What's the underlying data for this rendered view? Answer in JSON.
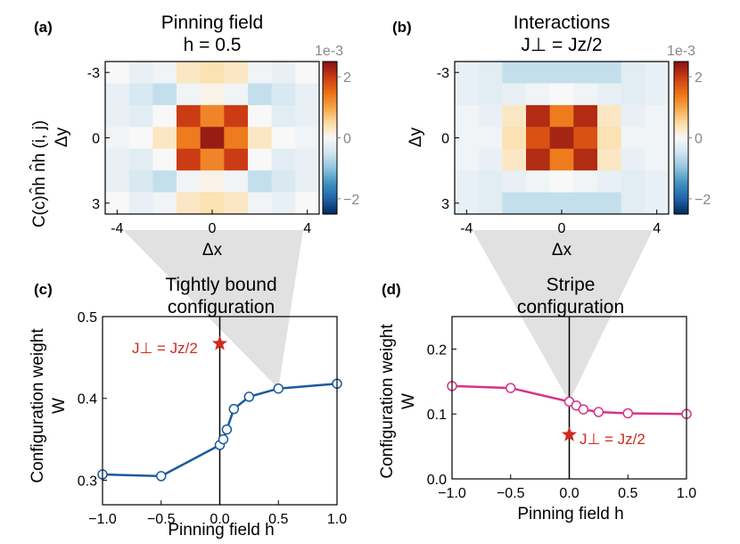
{
  "colors": {
    "blue_line": "#1a5a9c",
    "pink_line": "#d6338a",
    "star": "#d02a1e",
    "cone": "#c8c8c8"
  },
  "chart_data": [
    {
      "id": "a",
      "type": "heatmap",
      "panel_label": "(a)",
      "title_line1": "Pinning field",
      "title_line2": "h = 0.5",
      "xlabel": "Δx",
      "ylabel": "Δy",
      "side_label": "C(c)n̂h n̂h (i, j)",
      "x_ticks": [
        "-4",
        "0",
        "4"
      ],
      "y_ticks": [
        "-3",
        "0",
        "3"
      ],
      "colorbar_ticks": [
        "2",
        "0",
        "−2"
      ],
      "colorbar_exponent": "1e-3",
      "vmin": -2.5,
      "vmax": 2.5,
      "x_values": [
        -4,
        -3,
        -2,
        -1,
        0,
        1,
        2,
        3,
        4
      ],
      "y_values": [
        -3,
        -2,
        -1,
        0,
        1,
        2,
        3
      ],
      "values": [
        [
          0.0,
          -0.2,
          -0.1,
          0.3,
          0.4,
          0.3,
          -0.1,
          -0.2,
          0.0
        ],
        [
          -0.2,
          -0.4,
          -0.6,
          -0.1,
          0.1,
          -0.1,
          -0.6,
          -0.4,
          -0.2
        ],
        [
          -0.2,
          -0.3,
          0.0,
          2.0,
          1.3,
          2.0,
          0.0,
          -0.3,
          -0.2
        ],
        [
          -0.1,
          0.0,
          0.3,
          1.4,
          2.4,
          1.4,
          0.3,
          0.0,
          -0.1
        ],
        [
          -0.2,
          -0.3,
          0.0,
          2.0,
          1.3,
          2.0,
          0.0,
          -0.3,
          -0.2
        ],
        [
          -0.2,
          -0.4,
          -0.6,
          -0.1,
          0.1,
          -0.1,
          -0.6,
          -0.4,
          -0.2
        ],
        [
          0.0,
          -0.2,
          -0.1,
          0.3,
          0.4,
          0.3,
          -0.1,
          -0.2,
          0.0
        ]
      ]
    },
    {
      "id": "b",
      "type": "heatmap",
      "panel_label": "(b)",
      "title_line1": "Interactions",
      "title_line2": "J⊥ = Jz/2",
      "xlabel": "Δx",
      "ylabel": "Δy",
      "x_ticks": [
        "-4",
        "0",
        "4"
      ],
      "y_ticks": [
        "-3",
        "0",
        "3"
      ],
      "colorbar_ticks": [
        "2",
        "0",
        "−2"
      ],
      "colorbar_exponent": "1e-3",
      "vmin": -2.5,
      "vmax": 2.5,
      "x_values": [
        -4,
        -3,
        -2,
        -1,
        0,
        1,
        2,
        3,
        4
      ],
      "y_values": [
        -3,
        -2,
        -1,
        0,
        1,
        2,
        3
      ],
      "values": [
        [
          -0.2,
          -0.3,
          -0.6,
          -0.6,
          -0.6,
          -0.6,
          -0.6,
          -0.3,
          -0.2
        ],
        [
          -0.2,
          -0.3,
          -0.2,
          -0.1,
          0.0,
          -0.1,
          -0.2,
          -0.3,
          -0.2
        ],
        [
          -0.1,
          -0.2,
          0.3,
          2.2,
          1.4,
          2.2,
          0.3,
          -0.2,
          -0.1
        ],
        [
          -0.1,
          -0.1,
          0.4,
          1.8,
          2.3,
          1.8,
          0.4,
          -0.1,
          -0.1
        ],
        [
          -0.1,
          -0.2,
          0.3,
          2.2,
          1.4,
          2.2,
          0.3,
          -0.2,
          -0.1
        ],
        [
          -0.2,
          -0.3,
          -0.2,
          -0.1,
          0.0,
          -0.1,
          -0.2,
          -0.3,
          -0.2
        ],
        [
          -0.2,
          -0.3,
          -0.6,
          -0.6,
          -0.6,
          -0.6,
          -0.6,
          -0.3,
          -0.2
        ]
      ]
    },
    {
      "id": "c",
      "type": "line",
      "panel_label": "(c)",
      "title_line1": "Tightly bound",
      "title_line2": "configuration",
      "xlabel": "Pinning field h",
      "ylabel_line1": "Configuration weight",
      "ylabel_line2": "W",
      "x_ticks": [
        "−1.0",
        "−0.5",
        "0.0",
        "0.5",
        "1.0"
      ],
      "y_ticks": [
        "0.3",
        "0.4",
        "0.5"
      ],
      "xlim": [
        -1.0,
        1.0
      ],
      "ylim": [
        0.27,
        0.5
      ],
      "series": [
        {
          "name": "W",
          "x": [
            -1.0,
            -0.5,
            0.0,
            0.03,
            0.06,
            0.12,
            0.25,
            0.5,
            1.0
          ],
          "y": [
            0.307,
            0.305,
            0.343,
            0.35,
            0.362,
            0.387,
            0.402,
            0.412,
            0.418
          ]
        }
      ],
      "star": {
        "x": 0.0,
        "y": 0.467
      },
      "star_label": "J⊥ = Jz/2"
    },
    {
      "id": "d",
      "type": "line",
      "panel_label": "(d)",
      "title_line1": "Stripe",
      "title_line2": "configuration",
      "xlabel": "Pinning field h",
      "ylabel_line1": "Configuration weight",
      "ylabel_line2": "W",
      "x_ticks": [
        "−1.0",
        "−0.5",
        "0.0",
        "0.5",
        "1.0"
      ],
      "y_ticks": [
        "0.0",
        "0.1",
        "0.2"
      ],
      "xlim": [
        -1.0,
        1.0
      ],
      "ylim": [
        0.0,
        0.25
      ],
      "series": [
        {
          "name": "W",
          "x": [
            -1.0,
            -0.5,
            0.0,
            0.06,
            0.12,
            0.25,
            0.5,
            1.0
          ],
          "y": [
            0.143,
            0.14,
            0.119,
            0.113,
            0.107,
            0.103,
            0.101,
            0.1
          ]
        }
      ],
      "star": {
        "x": 0.0,
        "y": 0.068
      },
      "star_label": "J⊥ = Jz/2"
    }
  ]
}
